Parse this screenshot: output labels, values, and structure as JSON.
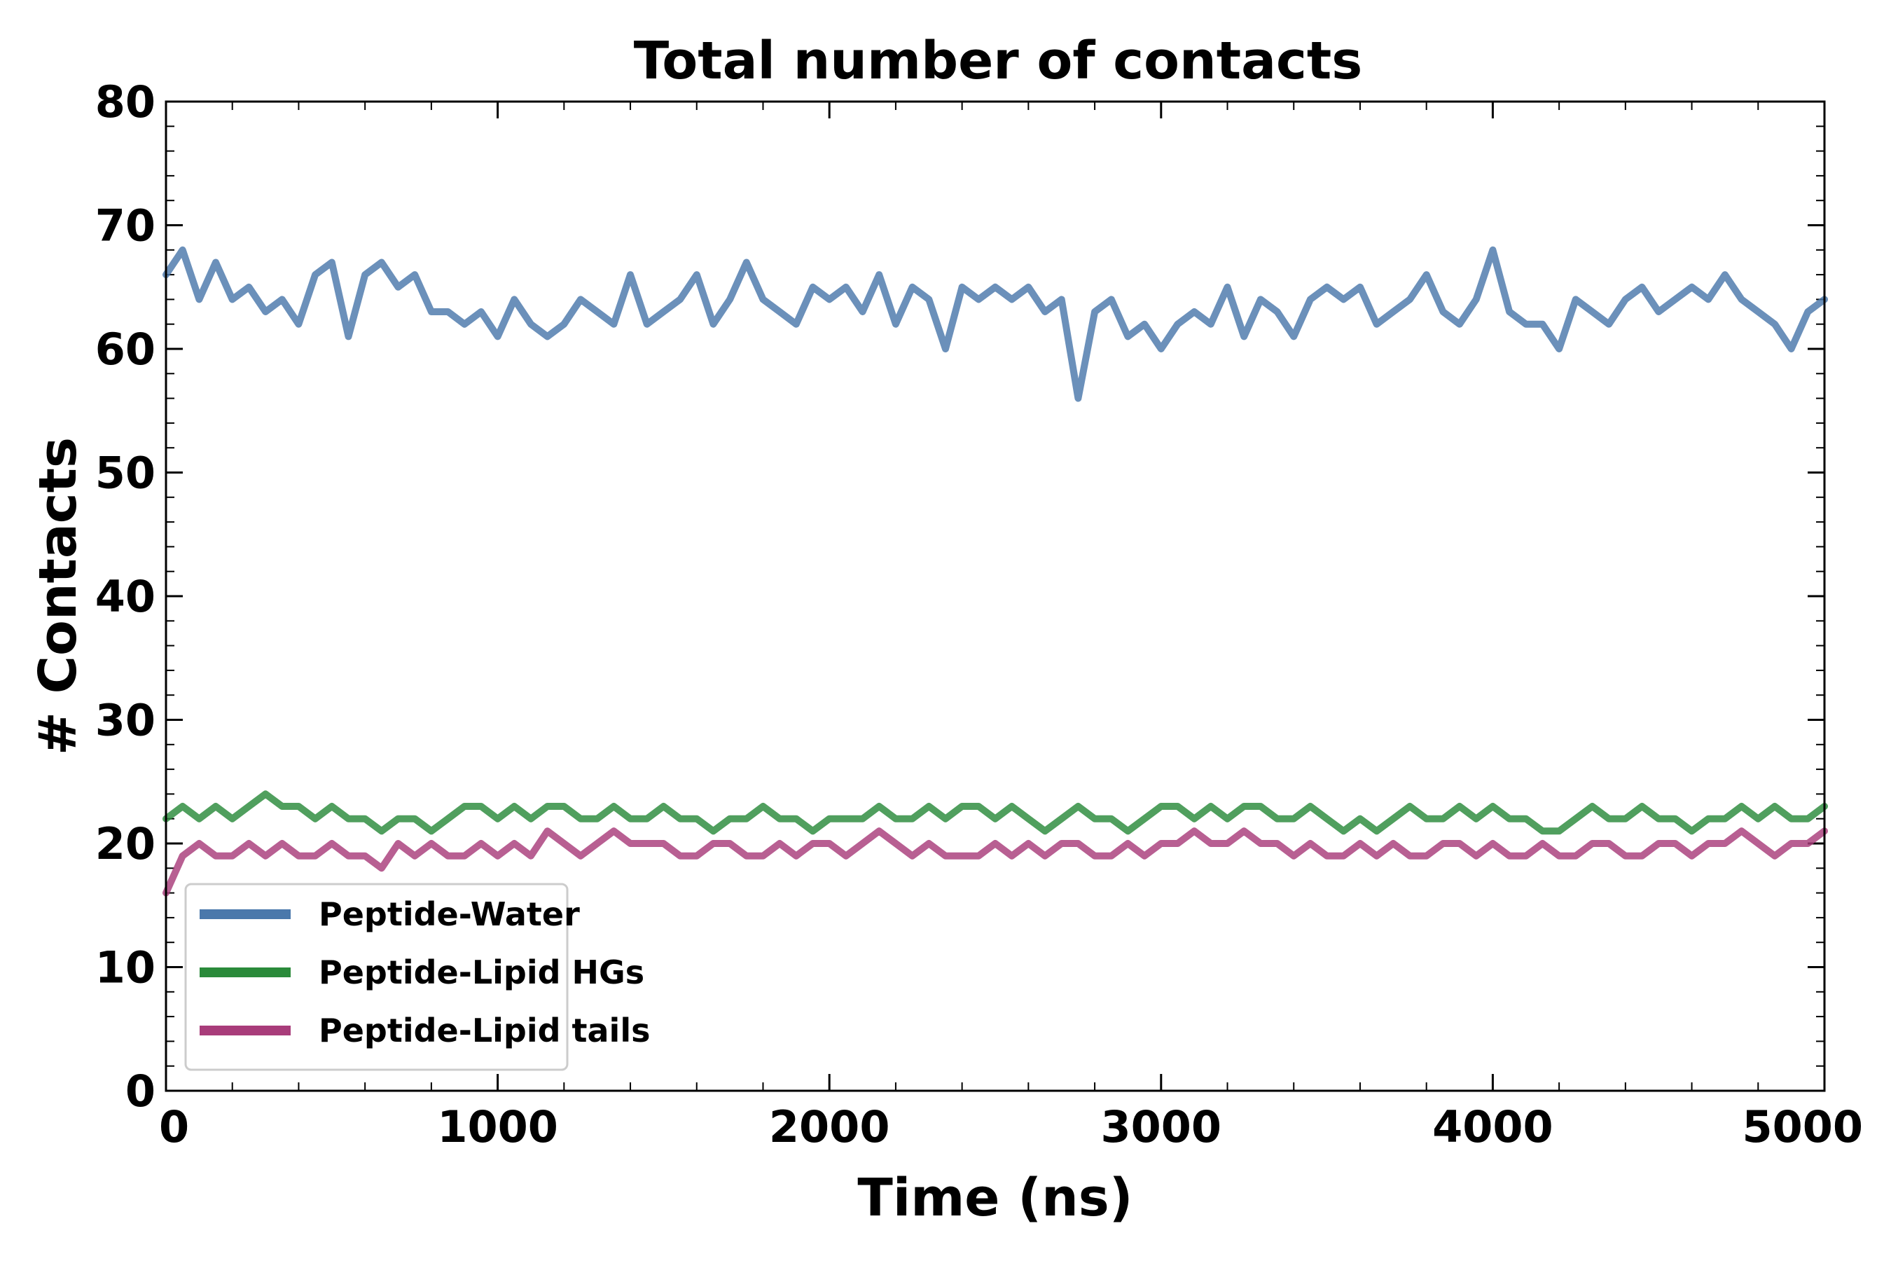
{
  "chart_data": {
    "type": "line",
    "title": "Total number of contacts",
    "xlabel": "Time (ns)",
    "ylabel": "# Contacts",
    "xlim": [
      0,
      5000
    ],
    "ylim": [
      0,
      80
    ],
    "xticks": [
      0,
      1000,
      2000,
      3000,
      4000,
      5000
    ],
    "yticks": [
      0,
      10,
      20,
      30,
      40,
      50,
      60,
      70,
      80
    ],
    "x_minor_step": 200,
    "y_minor_step": 2,
    "grid": false,
    "legend_position": "bottom-left",
    "series": [
      {
        "name": "Peptide-Water",
        "color": "#4a78ab",
        "x": [
          0,
          50,
          100,
          150,
          200,
          250,
          300,
          350,
          400,
          450,
          500,
          550,
          600,
          650,
          700,
          750,
          800,
          850,
          900,
          950,
          1000,
          1050,
          1100,
          1150,
          1200,
          1250,
          1300,
          1350,
          1400,
          1450,
          1500,
          1550,
          1600,
          1650,
          1700,
          1750,
          1800,
          1850,
          1900,
          1950,
          2000,
          2050,
          2100,
          2150,
          2200,
          2250,
          2300,
          2350,
          2400,
          2450,
          2500,
          2550,
          2600,
          2650,
          2700,
          2750,
          2800,
          2850,
          2900,
          2950,
          3000,
          3050,
          3100,
          3150,
          3200,
          3250,
          3300,
          3350,
          3400,
          3450,
          3500,
          3550,
          3600,
          3650,
          3700,
          3750,
          3800,
          3850,
          3900,
          3950,
          4000,
          4050,
          4100,
          4150,
          4200,
          4250,
          4300,
          4350,
          4400,
          4450,
          4500,
          4550,
          4600,
          4650,
          4700,
          4750,
          4800,
          4850,
          4900,
          4950,
          5000
        ],
        "y": [
          66,
          68,
          64,
          67,
          64,
          65,
          63,
          64,
          62,
          66,
          67,
          61,
          66,
          67,
          65,
          66,
          63,
          63,
          62,
          63,
          61,
          64,
          62,
          61,
          62,
          64,
          63,
          62,
          66,
          62,
          63,
          64,
          66,
          62,
          64,
          67,
          64,
          63,
          62,
          65,
          64,
          65,
          63,
          66,
          62,
          65,
          64,
          60,
          65,
          64,
          65,
          64,
          65,
          63,
          64,
          56,
          63,
          64,
          61,
          62,
          60,
          62,
          63,
          62,
          65,
          61,
          64,
          63,
          61,
          64,
          65,
          64,
          65,
          62,
          63,
          64,
          66,
          63,
          62,
          64,
          68,
          63,
          62,
          62,
          60,
          64,
          63,
          62,
          64,
          65,
          63,
          64,
          65,
          64,
          66,
          64,
          63,
          62,
          60,
          63,
          64
        ]
      },
      {
        "name": "Peptide-Lipid HGs",
        "color": "#2a8a3a",
        "x": [
          0,
          50,
          100,
          150,
          200,
          250,
          300,
          350,
          400,
          450,
          500,
          550,
          600,
          650,
          700,
          750,
          800,
          850,
          900,
          950,
          1000,
          1050,
          1100,
          1150,
          1200,
          1250,
          1300,
          1350,
          1400,
          1450,
          1500,
          1550,
          1600,
          1650,
          1700,
          1750,
          1800,
          1850,
          1900,
          1950,
          2000,
          2050,
          2100,
          2150,
          2200,
          2250,
          2300,
          2350,
          2400,
          2450,
          2500,
          2550,
          2600,
          2650,
          2700,
          2750,
          2800,
          2850,
          2900,
          2950,
          3000,
          3050,
          3100,
          3150,
          3200,
          3250,
          3300,
          3350,
          3400,
          3450,
          3500,
          3550,
          3600,
          3650,
          3700,
          3750,
          3800,
          3850,
          3900,
          3950,
          4000,
          4050,
          4100,
          4150,
          4200,
          4250,
          4300,
          4350,
          4400,
          4450,
          4500,
          4550,
          4600,
          4650,
          4700,
          4750,
          4800,
          4850,
          4900,
          4950,
          5000
        ],
        "y": [
          22,
          23,
          22,
          23,
          22,
          23,
          24,
          23,
          23,
          22,
          23,
          22,
          22,
          21,
          22,
          22,
          21,
          22,
          23,
          23,
          22,
          23,
          22,
          23,
          23,
          22,
          22,
          23,
          22,
          22,
          23,
          22,
          22,
          21,
          22,
          22,
          23,
          22,
          22,
          21,
          22,
          22,
          22,
          23,
          22,
          22,
          23,
          22,
          23,
          23,
          22,
          23,
          22,
          21,
          22,
          23,
          22,
          22,
          21,
          22,
          23,
          23,
          22,
          23,
          22,
          23,
          23,
          22,
          22,
          23,
          22,
          21,
          22,
          21,
          22,
          23,
          22,
          22,
          23,
          22,
          23,
          22,
          22,
          21,
          21,
          22,
          23,
          22,
          22,
          23,
          22,
          22,
          21,
          22,
          22,
          23,
          22,
          23,
          22,
          22,
          23
        ]
      },
      {
        "name": "Peptide-Lipid tails",
        "color": "#a83c7a",
        "x": [
          0,
          50,
          100,
          150,
          200,
          250,
          300,
          350,
          400,
          450,
          500,
          550,
          600,
          650,
          700,
          750,
          800,
          850,
          900,
          950,
          1000,
          1050,
          1100,
          1150,
          1200,
          1250,
          1300,
          1350,
          1400,
          1450,
          1500,
          1550,
          1600,
          1650,
          1700,
          1750,
          1800,
          1850,
          1900,
          1950,
          2000,
          2050,
          2100,
          2150,
          2200,
          2250,
          2300,
          2350,
          2400,
          2450,
          2500,
          2550,
          2600,
          2650,
          2700,
          2750,
          2800,
          2850,
          2900,
          2950,
          3000,
          3050,
          3100,
          3150,
          3200,
          3250,
          3300,
          3350,
          3400,
          3450,
          3500,
          3550,
          3600,
          3650,
          3700,
          3750,
          3800,
          3850,
          3900,
          3950,
          4000,
          4050,
          4100,
          4150,
          4200,
          4250,
          4300,
          4350,
          4400,
          4450,
          4500,
          4550,
          4600,
          4650,
          4700,
          4750,
          4800,
          4850,
          4900,
          4950,
          5000
        ],
        "y": [
          16,
          19,
          20,
          19,
          19,
          20,
          19,
          20,
          19,
          19,
          20,
          19,
          19,
          18,
          20,
          19,
          20,
          19,
          19,
          20,
          19,
          20,
          19,
          21,
          20,
          19,
          20,
          21,
          20,
          20,
          20,
          19,
          19,
          20,
          20,
          19,
          19,
          20,
          19,
          20,
          20,
          19,
          20,
          21,
          20,
          19,
          20,
          19,
          19,
          19,
          20,
          19,
          20,
          19,
          20,
          20,
          19,
          19,
          20,
          19,
          20,
          20,
          21,
          20,
          20,
          21,
          20,
          20,
          19,
          20,
          19,
          19,
          20,
          19,
          20,
          19,
          19,
          20,
          20,
          19,
          20,
          19,
          19,
          20,
          19,
          19,
          20,
          20,
          19,
          19,
          20,
          20,
          19,
          20,
          20,
          21,
          20,
          19,
          20,
          20,
          21
        ]
      }
    ]
  }
}
